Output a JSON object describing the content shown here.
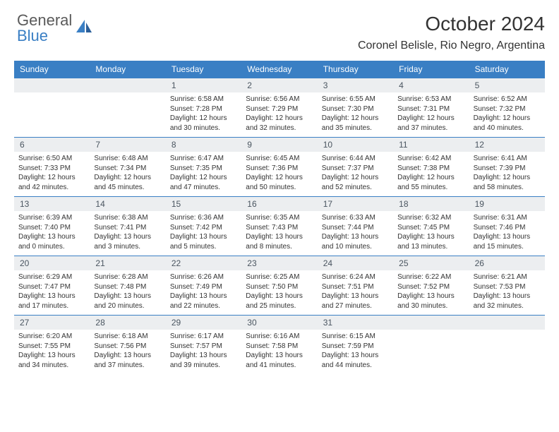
{
  "brand": {
    "top": "General",
    "bottom": "Blue"
  },
  "title": "October 2024",
  "location": "Coronel Belisle, Rio Negro, Argentina",
  "colors": {
    "header_bg": "#3a7fc4",
    "header_text": "#ffffff",
    "daynum_bg": "#eceef0",
    "daynum_text": "#4a5560",
    "body_text": "#333333",
    "brand_gray": "#5a5a5a",
    "brand_blue": "#3a7fc4"
  },
  "day_labels": [
    "Sunday",
    "Monday",
    "Tuesday",
    "Wednesday",
    "Thursday",
    "Friday",
    "Saturday"
  ],
  "weeks": [
    {
      "nums": [
        "",
        "",
        "1",
        "2",
        "3",
        "4",
        "5"
      ],
      "cells": [
        null,
        null,
        {
          "sunrise": "Sunrise: 6:58 AM",
          "sunset": "Sunset: 7:28 PM",
          "day": "Daylight: 12 hours and 30 minutes."
        },
        {
          "sunrise": "Sunrise: 6:56 AM",
          "sunset": "Sunset: 7:29 PM",
          "day": "Daylight: 12 hours and 32 minutes."
        },
        {
          "sunrise": "Sunrise: 6:55 AM",
          "sunset": "Sunset: 7:30 PM",
          "day": "Daylight: 12 hours and 35 minutes."
        },
        {
          "sunrise": "Sunrise: 6:53 AM",
          "sunset": "Sunset: 7:31 PM",
          "day": "Daylight: 12 hours and 37 minutes."
        },
        {
          "sunrise": "Sunrise: 6:52 AM",
          "sunset": "Sunset: 7:32 PM",
          "day": "Daylight: 12 hours and 40 minutes."
        }
      ]
    },
    {
      "nums": [
        "6",
        "7",
        "8",
        "9",
        "10",
        "11",
        "12"
      ],
      "cells": [
        {
          "sunrise": "Sunrise: 6:50 AM",
          "sunset": "Sunset: 7:33 PM",
          "day": "Daylight: 12 hours and 42 minutes."
        },
        {
          "sunrise": "Sunrise: 6:48 AM",
          "sunset": "Sunset: 7:34 PM",
          "day": "Daylight: 12 hours and 45 minutes."
        },
        {
          "sunrise": "Sunrise: 6:47 AM",
          "sunset": "Sunset: 7:35 PM",
          "day": "Daylight: 12 hours and 47 minutes."
        },
        {
          "sunrise": "Sunrise: 6:45 AM",
          "sunset": "Sunset: 7:36 PM",
          "day": "Daylight: 12 hours and 50 minutes."
        },
        {
          "sunrise": "Sunrise: 6:44 AM",
          "sunset": "Sunset: 7:37 PM",
          "day": "Daylight: 12 hours and 52 minutes."
        },
        {
          "sunrise": "Sunrise: 6:42 AM",
          "sunset": "Sunset: 7:38 PM",
          "day": "Daylight: 12 hours and 55 minutes."
        },
        {
          "sunrise": "Sunrise: 6:41 AM",
          "sunset": "Sunset: 7:39 PM",
          "day": "Daylight: 12 hours and 58 minutes."
        }
      ]
    },
    {
      "nums": [
        "13",
        "14",
        "15",
        "16",
        "17",
        "18",
        "19"
      ],
      "cells": [
        {
          "sunrise": "Sunrise: 6:39 AM",
          "sunset": "Sunset: 7:40 PM",
          "day": "Daylight: 13 hours and 0 minutes."
        },
        {
          "sunrise": "Sunrise: 6:38 AM",
          "sunset": "Sunset: 7:41 PM",
          "day": "Daylight: 13 hours and 3 minutes."
        },
        {
          "sunrise": "Sunrise: 6:36 AM",
          "sunset": "Sunset: 7:42 PM",
          "day": "Daylight: 13 hours and 5 minutes."
        },
        {
          "sunrise": "Sunrise: 6:35 AM",
          "sunset": "Sunset: 7:43 PM",
          "day": "Daylight: 13 hours and 8 minutes."
        },
        {
          "sunrise": "Sunrise: 6:33 AM",
          "sunset": "Sunset: 7:44 PM",
          "day": "Daylight: 13 hours and 10 minutes."
        },
        {
          "sunrise": "Sunrise: 6:32 AM",
          "sunset": "Sunset: 7:45 PM",
          "day": "Daylight: 13 hours and 13 minutes."
        },
        {
          "sunrise": "Sunrise: 6:31 AM",
          "sunset": "Sunset: 7:46 PM",
          "day": "Daylight: 13 hours and 15 minutes."
        }
      ]
    },
    {
      "nums": [
        "20",
        "21",
        "22",
        "23",
        "24",
        "25",
        "26"
      ],
      "cells": [
        {
          "sunrise": "Sunrise: 6:29 AM",
          "sunset": "Sunset: 7:47 PM",
          "day": "Daylight: 13 hours and 17 minutes."
        },
        {
          "sunrise": "Sunrise: 6:28 AM",
          "sunset": "Sunset: 7:48 PM",
          "day": "Daylight: 13 hours and 20 minutes."
        },
        {
          "sunrise": "Sunrise: 6:26 AM",
          "sunset": "Sunset: 7:49 PM",
          "day": "Daylight: 13 hours and 22 minutes."
        },
        {
          "sunrise": "Sunrise: 6:25 AM",
          "sunset": "Sunset: 7:50 PM",
          "day": "Daylight: 13 hours and 25 minutes."
        },
        {
          "sunrise": "Sunrise: 6:24 AM",
          "sunset": "Sunset: 7:51 PM",
          "day": "Daylight: 13 hours and 27 minutes."
        },
        {
          "sunrise": "Sunrise: 6:22 AM",
          "sunset": "Sunset: 7:52 PM",
          "day": "Daylight: 13 hours and 30 minutes."
        },
        {
          "sunrise": "Sunrise: 6:21 AM",
          "sunset": "Sunset: 7:53 PM",
          "day": "Daylight: 13 hours and 32 minutes."
        }
      ]
    },
    {
      "nums": [
        "27",
        "28",
        "29",
        "30",
        "31",
        "",
        ""
      ],
      "cells": [
        {
          "sunrise": "Sunrise: 6:20 AM",
          "sunset": "Sunset: 7:55 PM",
          "day": "Daylight: 13 hours and 34 minutes."
        },
        {
          "sunrise": "Sunrise: 6:18 AM",
          "sunset": "Sunset: 7:56 PM",
          "day": "Daylight: 13 hours and 37 minutes."
        },
        {
          "sunrise": "Sunrise: 6:17 AM",
          "sunset": "Sunset: 7:57 PM",
          "day": "Daylight: 13 hours and 39 minutes."
        },
        {
          "sunrise": "Sunrise: 6:16 AM",
          "sunset": "Sunset: 7:58 PM",
          "day": "Daylight: 13 hours and 41 minutes."
        },
        {
          "sunrise": "Sunrise: 6:15 AM",
          "sunset": "Sunset: 7:59 PM",
          "day": "Daylight: 13 hours and 44 minutes."
        },
        null,
        null
      ]
    }
  ]
}
